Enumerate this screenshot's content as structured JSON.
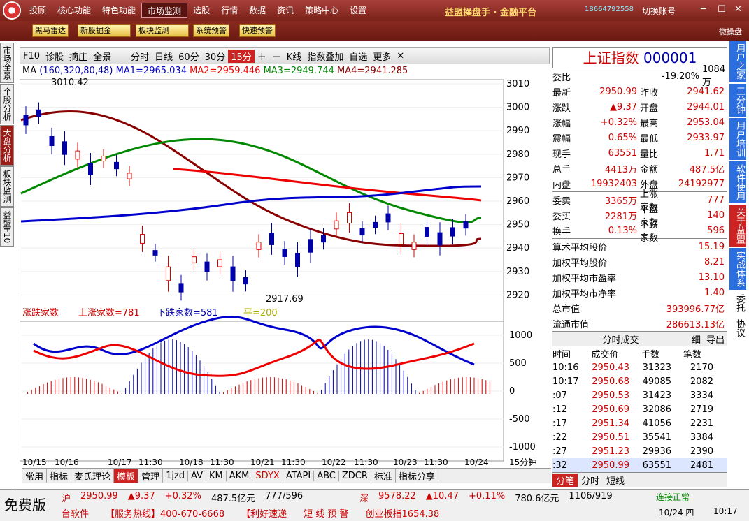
{
  "titlebar": {
    "menu": [
      "投顾",
      "核心功能",
      "特色功能",
      "市场监测",
      "选股",
      "行情",
      "数据",
      "资讯",
      "策略中心",
      "设置"
    ],
    "active": "市场监测",
    "brand": "益盟操盘手 · 金融平台",
    "phone": "18664792558",
    "account": "切换账号"
  },
  "toolbar": {
    "buttons": [
      "黑马雷达",
      "新股掘金",
      "板块监测",
      "系统预警",
      "快速预警"
    ],
    "right": "微操盘"
  },
  "left_tabs": [
    "市场全景",
    "个股分析",
    "大盘分析",
    "板块监测",
    "益盟F10"
  ],
  "chart_toolbar": {
    "items": [
      "F10",
      "诊股",
      "摘庄",
      "全景",
      "分时",
      "日线",
      "60分",
      "30分",
      "15分",
      "K线",
      "指数叠加",
      "自选",
      "更多"
    ],
    "selected": "15分"
  },
  "ma_legend": {
    "prefix": "MA",
    "params": "(160,320,80,48)",
    "ma1": "MA1=2965.034",
    "ma2": "MA2=2959.446",
    "ma3": "MA3=2949.744",
    "ma4": "MA4=2941.285"
  },
  "price_axis": [
    "3010",
    "3000",
    "2990",
    "2980",
    "2970",
    "2960",
    "2950",
    "2940",
    "2930",
    "2920"
  ],
  "annotations": {
    "high": "3010.42",
    "low": "2917.69"
  },
  "sub_legend": {
    "name": "涨跌家数",
    "up": "上涨家数=781",
    "down": "下跌家数=581",
    "flat": "平=200"
  },
  "sub_axis": [
    "1000",
    "500",
    "0",
    "-500",
    "-1000"
  ],
  "date_axis": [
    "10/15",
    "10/16",
    "10/17",
    "11:30",
    "10/18",
    "11:30",
    "10/21",
    "11:30",
    "10/22",
    "11:30",
    "10/23",
    "11:30",
    "10/24",
    "15分钟"
  ],
  "bottom_tabs": [
    "常用",
    "指标",
    "麦氏理论",
    "模板",
    "管理",
    "1jzd",
    "AV",
    "KM",
    "AKM",
    "SDYX",
    "ATAPI",
    "ABC",
    "ZDCR",
    "标准",
    "指标分享"
  ],
  "quote": {
    "name": "上证指数",
    "code": "000001",
    "rows": [
      [
        "委比",
        "-19.20%",
        "1084万"
      ],
      [
        "最新",
        "2950.99",
        "昨收",
        "2941.62"
      ],
      [
        "涨跌",
        "▲9.37",
        "开盘",
        "2944.01"
      ],
      [
        "涨幅",
        "+0.32%",
        "最高",
        "2953.04"
      ],
      [
        "震幅",
        "0.65%",
        "最低",
        "2933.97"
      ],
      [
        "现手",
        "63551",
        "量比",
        "1.71"
      ],
      [
        "总手",
        "4413万",
        "金额",
        "487.5亿"
      ],
      [
        "内盘",
        "19932403",
        "外盘",
        "24192977"
      ]
    ],
    "rows2": [
      [
        "委卖",
        "3365万",
        "上涨家数",
        "777"
      ],
      [
        "委买",
        "2281万",
        "平盘家数",
        "140"
      ],
      [
        "换手",
        "0.13%",
        "下跌家数",
        "596"
      ]
    ],
    "stats": [
      [
        "算术平均股价",
        "15.19"
      ],
      [
        "加权平均股价",
        "8.21"
      ],
      [
        "加权平均市盈率",
        "13.10"
      ],
      [
        "加权平均市净率",
        "1.40"
      ],
      [
        "总市值",
        "393996.77亿"
      ],
      [
        "流通市值",
        "286613.13亿"
      ]
    ]
  },
  "ticks": {
    "title": "分时成交",
    "buttons": [
      "细",
      "导出"
    ],
    "headers": [
      "时间",
      "成交价",
      "手数",
      "笔数"
    ],
    "rows": [
      [
        "10:16",
        "2950.43",
        "31323",
        "2170"
      ],
      [
        "10:17",
        "2950.68",
        "49085",
        "2082"
      ],
      [
        ":07",
        "2950.53",
        "31423",
        "3334"
      ],
      [
        ":12",
        "2950.69",
        "32086",
        "2719"
      ],
      [
        ":17",
        "2951.34",
        "41056",
        "2231"
      ],
      [
        ":22",
        "2950.51",
        "35541",
        "3384"
      ],
      [
        ":27",
        "2951.23",
        "29936",
        "2390"
      ],
      [
        ":32",
        "2950.99",
        "63551",
        "2481"
      ]
    ],
    "tabs": [
      "分笔",
      "分时",
      "短线"
    ]
  },
  "far_right": [
    "用户之家",
    "三分钟",
    "用户培训",
    "软件使用",
    "关于益盟",
    "实战体系",
    "委托",
    "协议"
  ],
  "status": {
    "free": "免费版",
    "sh": [
      "沪",
      "2950.99",
      "▲9.37",
      "+0.32%",
      "487.5亿元",
      "777/596"
    ],
    "sz": [
      "深",
      "9578.22",
      "▲10.47",
      "+0.11%",
      "780.6亿元",
      "1106/919"
    ],
    "conn": "连接正常",
    "ticker": [
      "台软件",
      "【服务热线】400-670-6668",
      "【利好速递",
      "短 线 预 警",
      "创业板指1654.38"
    ],
    "date": "10/24 四",
    "time": "10:17"
  }
}
